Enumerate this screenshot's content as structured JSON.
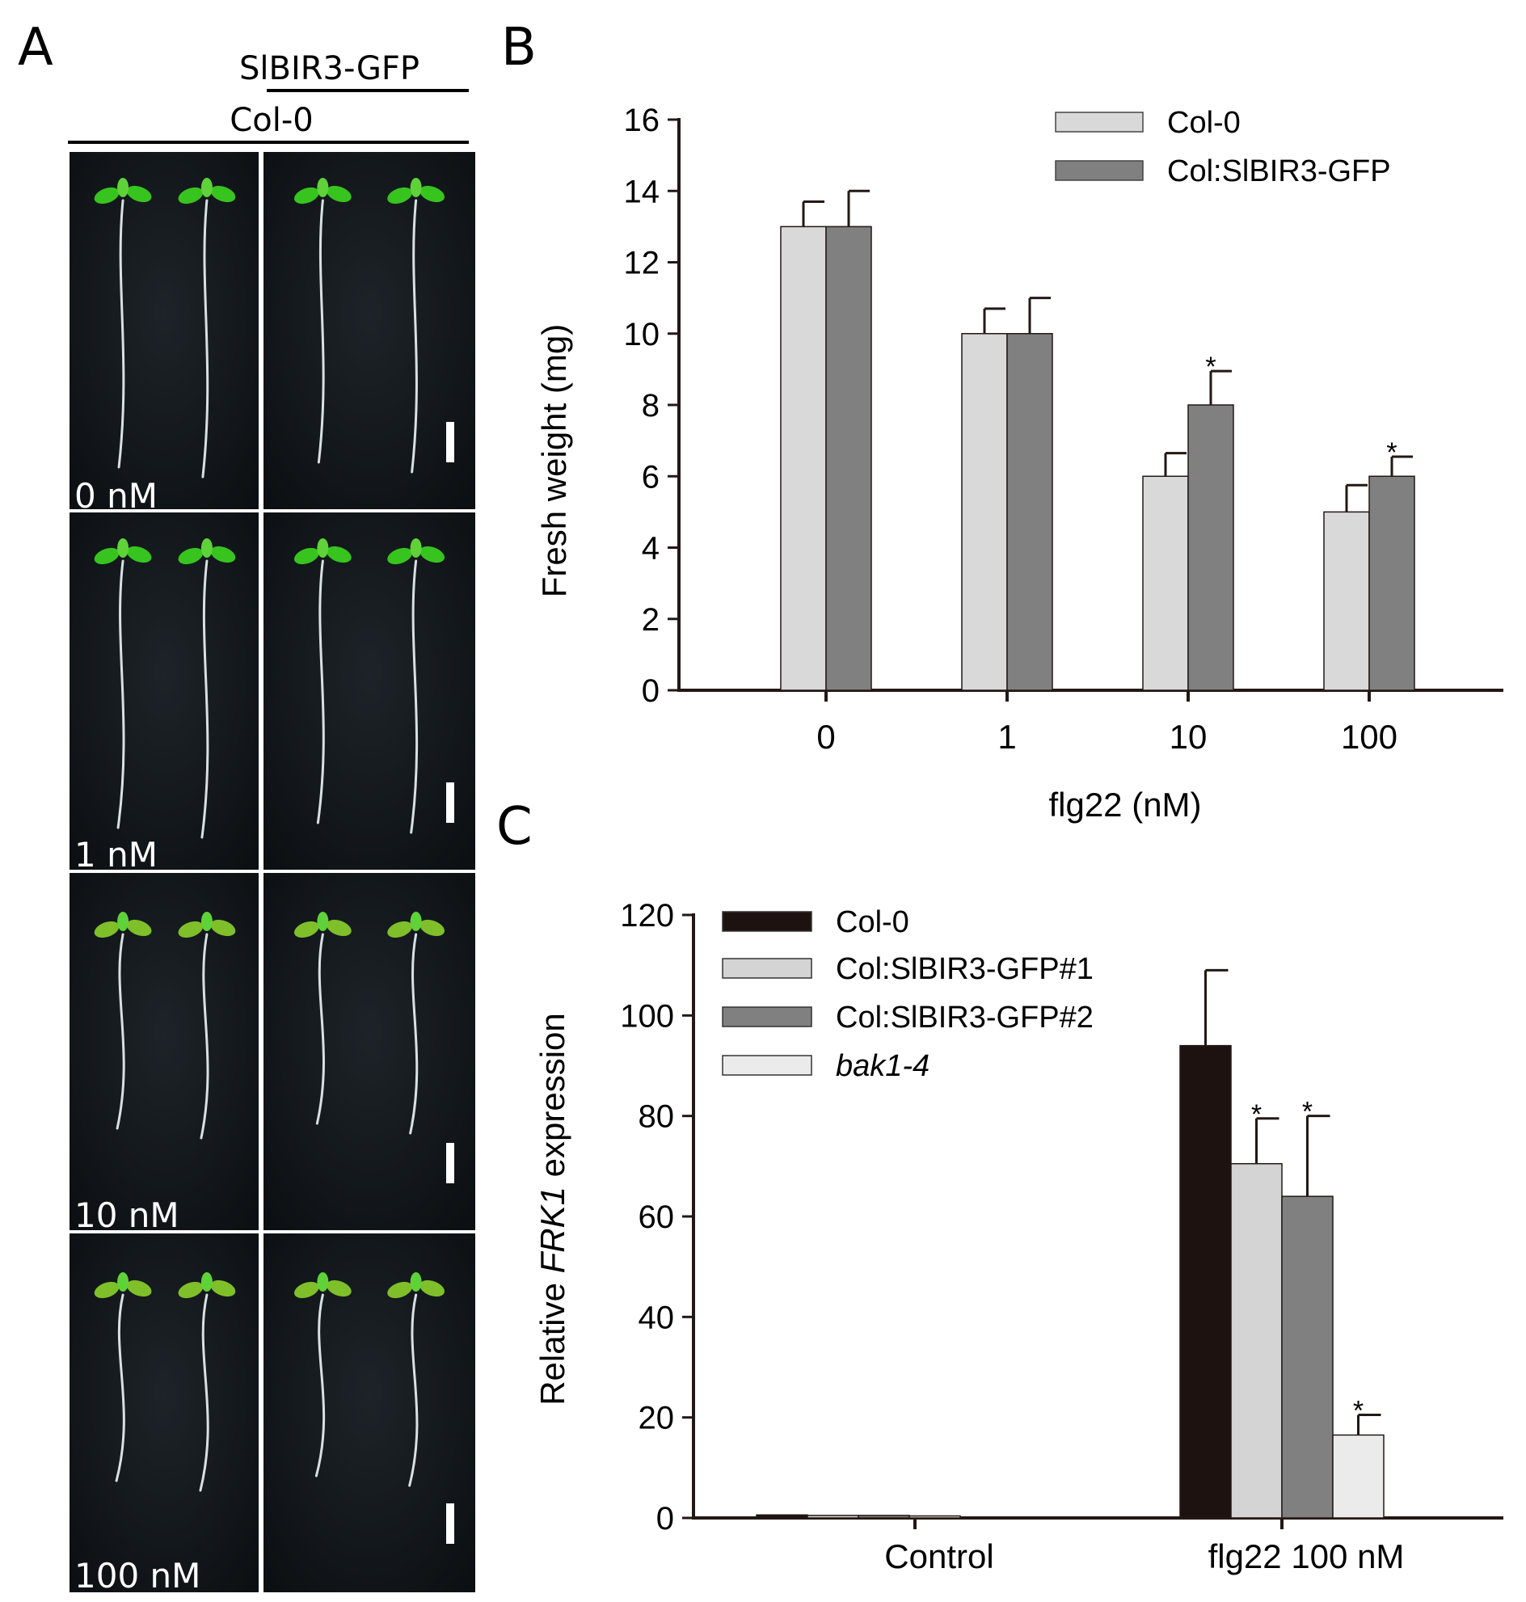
{
  "panel_a": {
    "letter": "A",
    "header_top": "SlBIR3-GFP",
    "header_bottom": "Col-0",
    "rows": [
      "0 nM",
      "1 nM",
      "10 nM",
      "100 nM"
    ]
  },
  "chart_data": [
    {
      "panel": "B",
      "type": "bar",
      "xlabel": "flg22 (nM)",
      "ylabel": "Fresh weight (mg)",
      "ylim": [
        0,
        16
      ],
      "yticks": [
        0,
        2,
        4,
        6,
        8,
        10,
        12,
        14,
        16
      ],
      "categories": [
        "0",
        "1",
        "10",
        "100"
      ],
      "series": [
        {
          "name": "Col-0",
          "color": "#d9d9d9",
          "values": [
            13,
            10,
            6,
            5
          ],
          "errors": [
            0.7,
            0.7,
            0.65,
            0.75
          ],
          "stars": [
            false,
            false,
            false,
            false
          ]
        },
        {
          "name": "Col:SlBIR3-GFP",
          "color": "#808080",
          "values": [
            13,
            10,
            8,
            6
          ],
          "errors": [
            1.0,
            1.0,
            0.95,
            0.55
          ],
          "stars": [
            false,
            false,
            true,
            true
          ]
        }
      ],
      "legend": "top-right",
      "star_symbol": "*"
    },
    {
      "panel": "C",
      "type": "bar",
      "xlabel": "",
      "ylabel_prefix": "Relative ",
      "ylabel_italic": "FRK1",
      "ylabel_suffix": " expression",
      "ylim": [
        0,
        120
      ],
      "yticks": [
        0,
        20,
        40,
        60,
        80,
        100,
        120
      ],
      "categories": [
        "Control",
        "flg22 100 nM"
      ],
      "series": [
        {
          "name": "Col-0",
          "italic": false,
          "color": "#1e1211",
          "values": [
            0.6,
            94
          ],
          "errors": [
            0,
            15
          ],
          "stars": [
            false,
            false
          ]
        },
        {
          "name": "Col:SlBIR3-GFP#1",
          "italic": false,
          "color": "#d4d4d4",
          "values": [
            0.5,
            70.5
          ],
          "errors": [
            0,
            9
          ],
          "stars": [
            false,
            true
          ]
        },
        {
          "name": "Col:SlBIR3-GFP#2",
          "italic": false,
          "color": "#808080",
          "values": [
            0.5,
            64
          ],
          "errors": [
            0,
            16
          ],
          "stars": [
            false,
            true
          ]
        },
        {
          "name": "bak1-4",
          "italic": true,
          "color": "#ebebeb",
          "values": [
            0.4,
            16.5
          ],
          "errors": [
            0,
            4
          ],
          "stars": [
            false,
            true
          ]
        }
      ],
      "legend": "top-left",
      "star_symbol": "*"
    }
  ]
}
